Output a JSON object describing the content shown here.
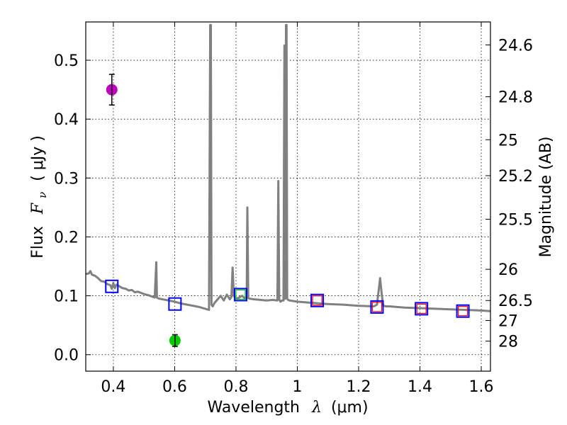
{
  "chart_data": {
    "type": "scatter",
    "title": "",
    "xlabel_text": "Wavelength",
    "xlabel_symbol": "λ",
    "xlabel_unit": "(μm)",
    "ylabel_text": "Flux",
    "ylabel_symbol": "F",
    "ylabel_subscript": "ν",
    "ylabel_unit": "( μJy )",
    "y2label": "Magnitude (AB)",
    "xlim": [
      0.31,
      1.63
    ],
    "ylim": [
      -0.028,
      0.565
    ],
    "grid": true,
    "xticks": [
      0.4,
      0.6,
      0.8,
      1.0,
      1.2,
      1.4,
      1.6
    ],
    "xtick_labels": [
      "0.4",
      "0.6",
      "0.8",
      "1",
      "1.2",
      "1.4",
      "1.6"
    ],
    "yticks": [
      0.0,
      0.1,
      0.2,
      0.3,
      0.4,
      0.5
    ],
    "ytick_labels": [
      "0.0",
      "0.1",
      "0.2",
      "0.3",
      "0.4",
      "0.5"
    ],
    "y2ticks": [
      {
        "label": "24.6",
        "flux": 0.526
      },
      {
        "label": "24.8",
        "flux": 0.438
      },
      {
        "label": "25",
        "flux": 0.365
      },
      {
        "label": "25.2",
        "flux": 0.304
      },
      {
        "label": "25.5",
        "flux": 0.23
      },
      {
        "label": "26",
        "flux": 0.145
      },
      {
        "label": "26.5",
        "flux": 0.092
      },
      {
        "label": "27",
        "flux": 0.058
      },
      {
        "label": "28",
        "flux": 0.023
      }
    ],
    "series": [
      {
        "name": "model-spectrum",
        "kind": "line",
        "color": "#808080",
        "x": [
          0.31,
          0.32,
          0.325,
          0.33,
          0.34,
          0.35,
          0.36,
          0.37,
          0.38,
          0.39,
          0.395,
          0.4,
          0.405,
          0.41,
          0.42,
          0.43,
          0.44,
          0.45,
          0.46,
          0.47,
          0.48,
          0.5,
          0.52,
          0.535,
          0.54,
          0.542,
          0.545,
          0.55,
          0.58,
          0.6,
          0.62,
          0.65,
          0.68,
          0.7,
          0.712,
          0.716,
          0.718,
          0.72,
          0.724,
          0.73,
          0.74,
          0.75,
          0.76,
          0.77,
          0.78,
          0.785,
          0.789,
          0.793,
          0.8,
          0.81,
          0.82,
          0.83,
          0.835,
          0.837,
          0.84,
          0.845,
          0.86,
          0.88,
          0.9,
          0.92,
          0.935,
          0.938,
          0.941,
          0.945,
          0.95,
          0.955,
          0.958,
          0.961,
          0.963,
          0.965,
          0.967,
          0.97,
          0.975,
          1.0,
          1.05,
          1.1,
          1.15,
          1.2,
          1.25,
          1.26,
          1.27,
          1.275,
          1.28,
          1.29,
          1.3,
          1.35,
          1.4,
          1.45,
          1.5,
          1.55,
          1.6,
          1.63
        ],
        "y": [
          0.137,
          0.138,
          0.142,
          0.136,
          0.134,
          0.13,
          0.125,
          0.124,
          0.12,
          0.118,
          0.112,
          0.122,
          0.113,
          0.119,
          0.116,
          0.113,
          0.112,
          0.109,
          0.11,
          0.106,
          0.107,
          0.103,
          0.1,
          0.097,
          0.157,
          0.097,
          0.096,
          0.095,
          0.092,
          0.09,
          0.087,
          0.084,
          0.081,
          0.078,
          0.076,
          0.56,
          0.56,
          0.085,
          0.082,
          0.088,
          0.094,
          0.1,
          0.092,
          0.102,
          0.094,
          0.098,
          0.148,
          0.1,
          0.095,
          0.097,
          0.1,
          0.095,
          0.098,
          0.25,
          0.096,
          0.095,
          0.094,
          0.093,
          0.092,
          0.093,
          0.092,
          0.295,
          0.094,
          0.09,
          0.092,
          0.092,
          0.525,
          0.095,
          0.56,
          0.56,
          0.095,
          0.093,
          0.092,
          0.09,
          0.088,
          0.086,
          0.085,
          0.083,
          0.082,
          0.085,
          0.13,
          0.105,
          0.083,
          0.082,
          0.082,
          0.08,
          0.079,
          0.078,
          0.077,
          0.076,
          0.075,
          0.074
        ]
      },
      {
        "name": "photometry-blue-squares",
        "kind": "square",
        "color": "#0000ff",
        "x": [
          0.395,
          0.601,
          0.815,
          1.065,
          1.26,
          1.405,
          1.54
        ],
        "y": [
          0.116,
          0.086,
          0.102,
          0.092,
          0.081,
          0.078,
          0.074
        ]
      },
      {
        "name": "model-red-squares",
        "kind": "square-small",
        "color": "#ff0000",
        "x": [
          1.065,
          1.26,
          1.405,
          1.54
        ],
        "y": [
          0.092,
          0.081,
          0.078,
          0.074
        ]
      },
      {
        "name": "model-green-square",
        "kind": "square-small",
        "color": "#00cc00",
        "x": [
          0.815
        ],
        "y": [
          0.102
        ]
      },
      {
        "name": "magenta-point",
        "kind": "circle",
        "color": "#bf00bf",
        "x": [
          0.395
        ],
        "y": [
          0.45
        ],
        "yerr": [
          0.026
        ]
      },
      {
        "name": "green-point",
        "kind": "circle",
        "color": "#00cc00",
        "x": [
          0.601
        ],
        "y": [
          0.024
        ],
        "yerr": [
          0.01
        ]
      }
    ]
  }
}
